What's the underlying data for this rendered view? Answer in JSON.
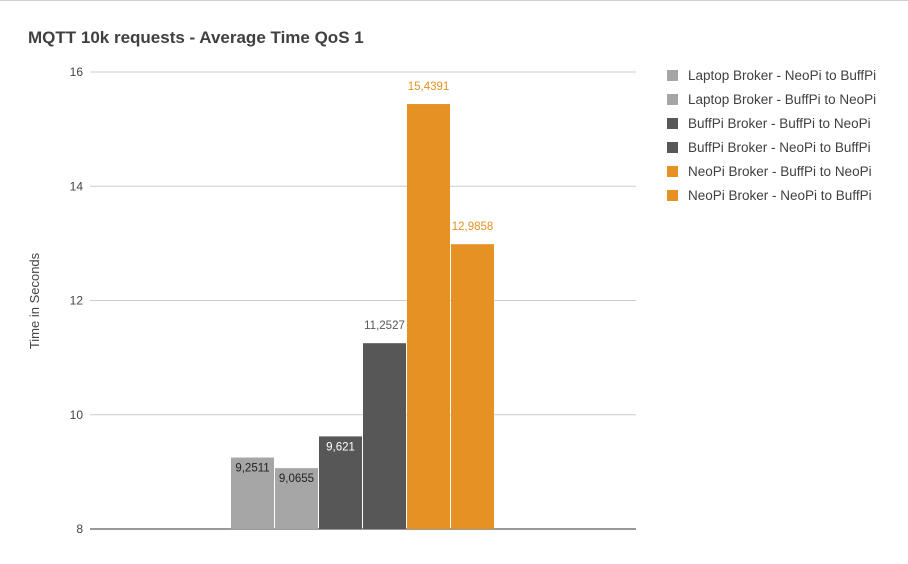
{
  "chart_data": {
    "type": "bar",
    "title": "MQTT 10k requests - Average Time QoS 1",
    "xlabel": "",
    "ylabel": "Time in Seconds",
    "ylim": [
      8,
      16
    ],
    "yticks": [
      "8",
      "10",
      "12",
      "14",
      "16"
    ],
    "grid": true,
    "legend_position": "right",
    "series": [
      {
        "name": "Laptop Broker - NeoPi to BuffPi",
        "value": 9.2511,
        "label": "9,2511",
        "color": "#a6a6a6",
        "label_color": "#222222",
        "label_position": "inside"
      },
      {
        "name": "Laptop Broker - BuffPi to NeoPi",
        "value": 9.0655,
        "label": "9,0655",
        "color": "#a6a6a6",
        "label_color": "#222222",
        "label_position": "inside"
      },
      {
        "name": "BuffPi Broker - BuffPi to NeoPi",
        "value": 9.621,
        "label": "9,621",
        "color": "#575757",
        "label_color": "#ffffff",
        "label_position": "inside"
      },
      {
        "name": "BuffPi Broker - NeoPi to BuffPi",
        "value": 11.2527,
        "label": "11,2527",
        "color": "#575757",
        "label_color": "#575757",
        "label_position": "above"
      },
      {
        "name": "NeoPi Broker - BuffPi to NeoPi",
        "value": 15.4391,
        "label": "15,4391",
        "color": "#e69124",
        "label_color": "#e69124",
        "label_position": "above"
      },
      {
        "name": "NeoPi Broker - NeoPi to BuffPi",
        "value": 12.9858,
        "label": "12,9858",
        "color": "#e69124",
        "label_color": "#e69124",
        "label_position": "above"
      }
    ]
  }
}
